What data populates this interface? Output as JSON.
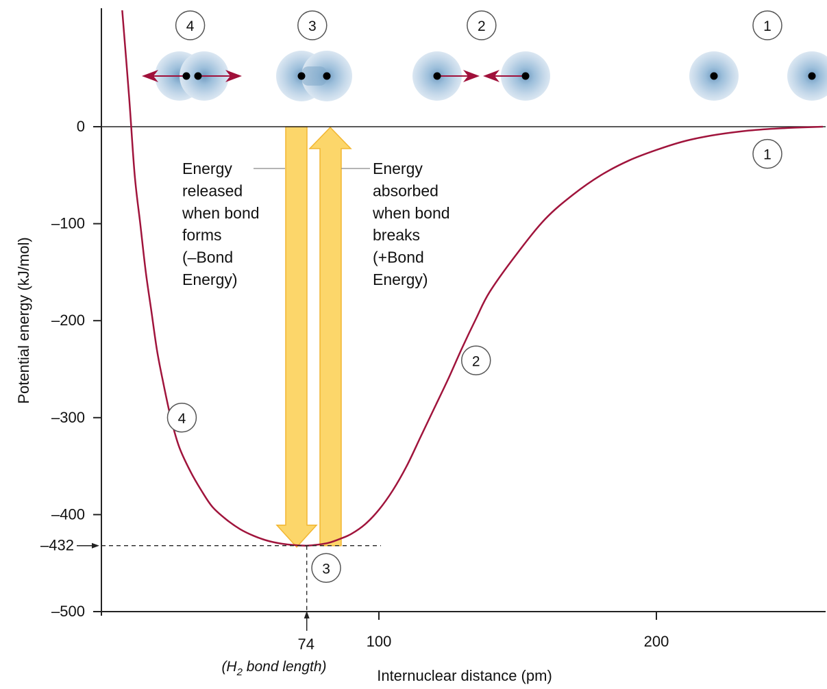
{
  "chart_data": {
    "type": "line",
    "xlabel": "Internuclear distance (pm)",
    "ylabel": "Potential energy (kJ/mol)",
    "xlim": [
      -1,
      260
    ],
    "ylim": [
      -500,
      120
    ],
    "x_ticks": [
      100,
      200
    ],
    "y_ticks": [
      0,
      -100,
      -200,
      -300,
      -400,
      -500
    ],
    "y_tick_labels": [
      "0",
      "–100",
      "–200",
      "–300",
      "–400",
      "–500"
    ],
    "grid": false,
    "series": [
      {
        "x": [
          7.5,
          10,
          12,
          14,
          16,
          18,
          20,
          22,
          25,
          28,
          32,
          36,
          40,
          45,
          50,
          55,
          60,
          65,
          70,
          74,
          78,
          82,
          86,
          90,
          95,
          100,
          105,
          110,
          115,
          120,
          125,
          130,
          135,
          140,
          150,
          160,
          170,
          180,
          190,
          200,
          210,
          220,
          230,
          240,
          250,
          260
        ],
        "values": [
          120,
          30,
          -50,
          -100,
          -150,
          -190,
          -230,
          -260,
          -300,
          -330,
          -355,
          -375,
          -392,
          -405,
          -415,
          -422,
          -427,
          -430,
          -431.5,
          -432,
          -431,
          -429,
          -425,
          -420,
          -410,
          -395,
          -375,
          -350,
          -320,
          -290,
          -260,
          -228,
          -198,
          -170,
          -130,
          -95,
          -70,
          -50,
          -35,
          -24,
          -15,
          -9,
          -5,
          -2.5,
          -1,
          0
        ]
      }
    ],
    "annotations": {
      "min_energy": -432,
      "min_energy_label": "–432",
      "bond_length": 74,
      "bond_length_label": "74",
      "bond_length_note_pre": "(H",
      "bond_length_note_sub": "2",
      "bond_length_note_post": " bond length)",
      "released": [
        "Energy",
        "released",
        "when bond",
        "forms",
        "(–Bond",
        "Energy)"
      ],
      "absorbed": [
        "Energy",
        "absorbed",
        "when bond",
        "breaks",
        "(+Bond",
        "Energy)"
      ],
      "markers": [
        {
          "label": "1",
          "x": 240,
          "y": -28
        },
        {
          "label": "2",
          "x": 135,
          "y": -241
        },
        {
          "label": "3",
          "x": 81,
          "y": -455
        },
        {
          "label": "4",
          "x": 29,
          "y": -300
        }
      ],
      "top_markers": [
        {
          "label": "4",
          "x": 32
        },
        {
          "label": "3",
          "x": 76
        },
        {
          "label": "2",
          "x": 137
        },
        {
          "label": "1",
          "x": 240
        }
      ]
    },
    "colors": {
      "curve": "#a0143c",
      "arrow_fill": "#fcd66a",
      "arrow_edge": "#f2b632",
      "axis": "#222222",
      "dashed": "#222222",
      "cloud_outer": "#c8daea",
      "cloud_inner": "#7fa7c9",
      "nucleus": "#000000",
      "force_arrow": "#a0103a"
    }
  }
}
